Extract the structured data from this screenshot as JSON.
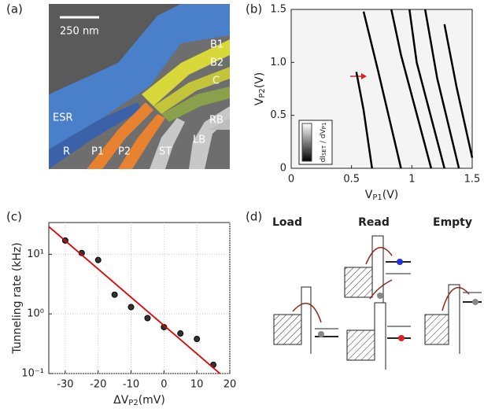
{
  "panel_a": {
    "label": "(a)",
    "scale_bar": "250 nm",
    "gates": [
      "B1",
      "B2",
      "C",
      "ESR",
      "RB",
      "R",
      "P1",
      "P2",
      "ST",
      "LB"
    ]
  },
  "panel_b": {
    "label": "(b)",
    "colorbar_label": {
      "main": "dI",
      "sub1": "SET",
      "mid": " / dV",
      "sub2": "P1"
    }
  },
  "panel_c": {
    "label": "(c)"
  },
  "panel_d": {
    "label": "(d)",
    "states": [
      "Load",
      "Read",
      "Empty"
    ]
  },
  "chart_data": [
    {
      "type": "line",
      "x_label": {
        "main": "V",
        "sub": "P1",
        "unit": "(V)"
      },
      "y_label": {
        "main": "V",
        "sub": "P2",
        "unit": "(V)"
      },
      "xlim": [
        0,
        1.5
      ],
      "ylim": [
        0,
        1.5
      ],
      "xticks": [
        0,
        0.5,
        1,
        1.5
      ],
      "yticks": [
        0,
        0.5,
        {
          "value": 1,
          "label": "1.0"
        },
        1.5
      ],
      "series": [
        {
          "color": "#000000",
          "x": [
            0.54,
            0.6,
            0.67
          ],
          "values": [
            0.91,
            0.55,
            0
          ]
        },
        {
          "color": "#000000",
          "x": [
            0.6,
            0.72,
            0.91
          ],
          "values": [
            1.48,
            0.92,
            0
          ]
        },
        {
          "color": "#000000",
          "x": [
            0.83,
            0.91,
            1.16
          ],
          "values": [
            1.5,
            1.07,
            0
          ]
        },
        {
          "color": "#000000",
          "x": [
            0.98,
            1.04,
            1.27
          ],
          "values": [
            1.5,
            1.0,
            0
          ]
        },
        {
          "color": "#000000",
          "x": [
            1.11,
            1.21,
            1.39
          ],
          "values": [
            1.5,
            0.85,
            0
          ]
        },
        {
          "color": "#000000",
          "x": [
            1.27,
            1.37,
            1.5
          ],
          "values": [
            1.36,
            0.77,
            0.1
          ]
        }
      ]
    },
    {
      "type": "scatter",
      "x_label": {
        "main": "ΔV",
        "sub": "P2",
        "unit": "(mV)"
      },
      "y_label": "Tunneling rate (kHz)",
      "log_y": true,
      "grid": true,
      "xlim": [
        -35,
        20
      ],
      "ylim": [
        0.1,
        34
      ],
      "xticks": [
        -30,
        -20,
        -10,
        0,
        10,
        20
      ],
      "yticks": [
        {
          "value": 0.1,
          "label": "10⁻¹"
        },
        {
          "value": 1,
          "label": "10⁰"
        },
        {
          "value": 10,
          "label": "10¹"
        }
      ],
      "series": [
        {
          "color": "#333333",
          "x": [
            -30,
            -25,
            -20,
            -15,
            -10,
            -5,
            0,
            5,
            10,
            15
          ],
          "values": [
            17,
            10.5,
            8,
            2.1,
            1.3,
            0.85,
            0.6,
            0.47,
            0.38,
            0.14
          ]
        },
        {
          "color": "#e00000",
          "fit": true,
          "x": [
            -35,
            17
          ],
          "values": [
            29,
            0.1
          ]
        }
      ]
    }
  ]
}
